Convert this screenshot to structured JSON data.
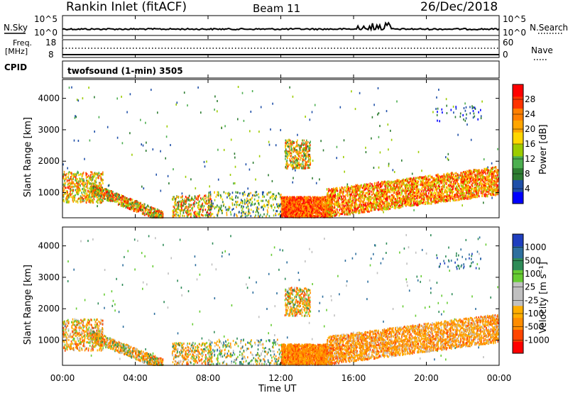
{
  "header": {
    "radar": "Rankin Inlet (fitACF)",
    "beam": "Beam 11",
    "date": "26/Dec/2018"
  },
  "top_panels": {
    "nsky_label": "N.Sky",
    "nsky_ticks": [
      "10^5",
      "10^0"
    ],
    "nsearch_label": "N.Search",
    "nsearch_ticks": [
      "10^5",
      "10^0"
    ],
    "freq_label": "Freq.",
    "freq_unit": "[MHz]",
    "freq_ticks": [
      "18",
      "8"
    ],
    "nave_label": "Nave",
    "nave_ticks": [
      "60",
      "0"
    ],
    "cpid_label": "CPID",
    "cpid_value": "twofsound (1-min) 3505"
  },
  "colors": {
    "power_scale": [
      "#0000ff",
      "#1f4fa8",
      "#2e7d32",
      "#4caf50",
      "#9ccc00",
      "#ffd700",
      "#ffa500",
      "#ff7f00",
      "#ff3300",
      "#ff0000"
    ],
    "velocity_scale": [
      "#ff0000",
      "#ff4500",
      "#ff8c00",
      "#ffae00",
      "#c0c0c0",
      "#c0c0c0",
      "#66cc33",
      "#2e8b57",
      "#2e6f9e",
      "#1f3fbf"
    ]
  },
  "chart_data": [
    {
      "type": "heatmap",
      "name": "power",
      "ylabel": "Slant Range [km]",
      "yticks": [
        "1000",
        "2000",
        "3000",
        "4000"
      ],
      "ylim": [
        200,
        4600
      ],
      "xticks": [
        "00:00",
        "04:00",
        "08:00",
        "12:00",
        "16:00",
        "20:00",
        "00:00"
      ],
      "xlim": [
        0,
        24
      ],
      "colorbar_label": "Power [dB]",
      "colorbar_ticks": [
        "28",
        "24",
        "20",
        "16",
        "12",
        "8",
        "4"
      ],
      "colorbar_range": [
        0,
        32
      ]
    },
    {
      "type": "heatmap",
      "name": "velocity",
      "ylabel": "Slant Range [km]",
      "yticks": [
        "1000",
        "2000",
        "3000",
        "4000"
      ],
      "ylim": [
        200,
        4600
      ],
      "xticks": [
        "00:00",
        "04:00",
        "08:00",
        "12:00",
        "16:00",
        "20:00",
        "00:00"
      ],
      "xlabel": "Time UT",
      "xlim": [
        0,
        24
      ],
      "colorbar_label": "Velocity [m s⁻¹]",
      "colorbar_ticks": [
        "1000",
        "500",
        "100",
        "25",
        "-25",
        "-100",
        "-500",
        "-1000"
      ],
      "colorbar_range": [
        -1000,
        1000
      ]
    }
  ]
}
